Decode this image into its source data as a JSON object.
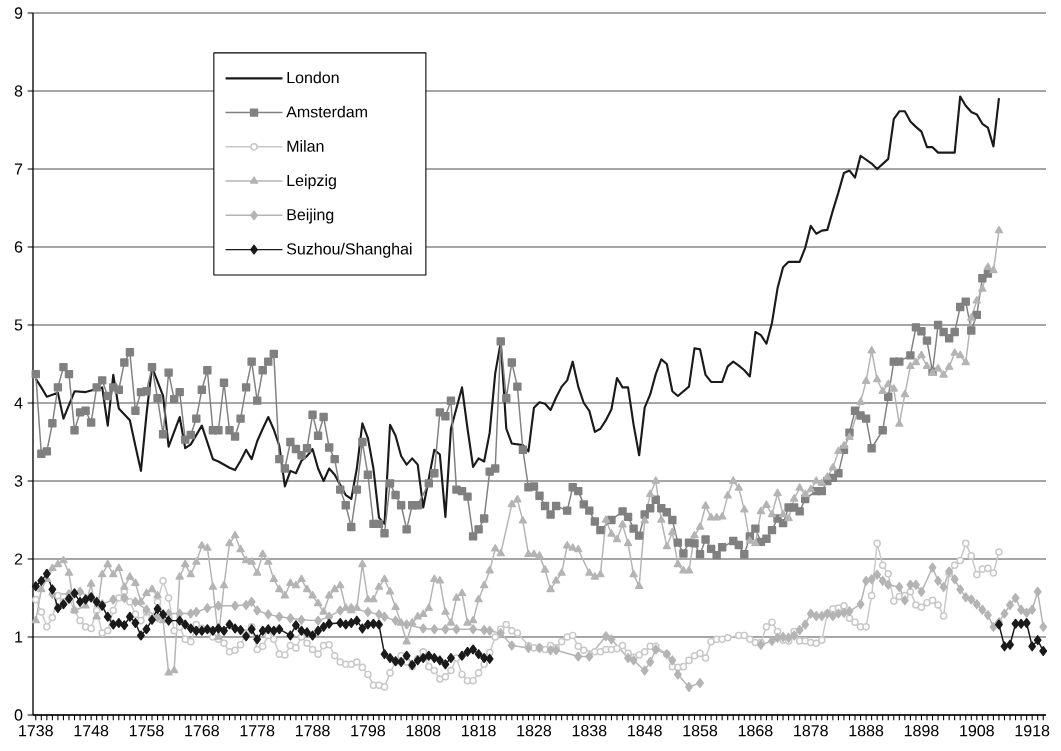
{
  "chart_data": {
    "type": "line",
    "line_style": "solid",
    "grid": "y",
    "legend": "top left",
    "xlim": [
      1737.5,
      1920.5
    ],
    "ylim": [
      0,
      9
    ],
    "yticks": [
      0,
      1,
      2,
      3,
      4,
      5,
      6,
      7,
      8,
      9
    ],
    "xticks": [
      1738,
      {
        "value": 1739,
        "label": null
      },
      {
        "value": 1740,
        "label": null
      },
      {
        "value": 1741,
        "label": null
      },
      {
        "value": 1742,
        "label": null
      },
      {
        "value": 1743,
        "label": null
      },
      {
        "value": 1744,
        "label": null
      },
      {
        "value": 1745,
        "label": null
      },
      {
        "value": 1746,
        "label": null
      },
      {
        "value": 1747,
        "label": null
      },
      1748,
      {
        "value": 1749,
        "label": null
      },
      {
        "value": 1750,
        "label": null
      },
      {
        "value": 1751,
        "label": null
      },
      {
        "value": 1752,
        "label": null
      },
      {
        "value": 1753,
        "label": null
      },
      {
        "value": 1754,
        "label": null
      },
      {
        "value": 1755,
        "label": null
      },
      {
        "value": 1756,
        "label": null
      },
      {
        "value": 1757,
        "label": null
      },
      1758,
      {
        "value": 1759,
        "label": null
      },
      {
        "value": 1760,
        "label": null
      },
      {
        "value": 1761,
        "label": null
      },
      {
        "value": 1762,
        "label": null
      },
      {
        "value": 1763,
        "label": null
      },
      {
        "value": 1764,
        "label": null
      },
      {
        "value": 1765,
        "label": null
      },
      {
        "value": 1766,
        "label": null
      },
      {
        "value": 1767,
        "label": null
      },
      1768,
      {
        "value": 1769,
        "label": null
      },
      {
        "value": 1770,
        "label": null
      },
      {
        "value": 1771,
        "label": null
      },
      {
        "value": 1772,
        "label": null
      },
      {
        "value": 1773,
        "label": null
      },
      {
        "value": 1774,
        "label": null
      },
      {
        "value": 1775,
        "label": null
      },
      {
        "value": 1776,
        "label": null
      },
      {
        "value": 1777,
        "label": null
      },
      1778,
      {
        "value": 1779,
        "label": null
      },
      {
        "value": 1780,
        "label": null
      },
      {
        "value": 1781,
        "label": null
      },
      {
        "value": 1782,
        "label": null
      },
      {
        "value": 1783,
        "label": null
      },
      {
        "value": 1784,
        "label": null
      },
      {
        "value": 1785,
        "label": null
      },
      {
        "value": 1786,
        "label": null
      },
      {
        "value": 1787,
        "label": null
      },
      1788,
      {
        "value": 1789,
        "label": null
      },
      {
        "value": 1790,
        "label": null
      },
      {
        "value": 1791,
        "label": null
      },
      {
        "value": 1792,
        "label": null
      },
      {
        "value": 1793,
        "label": null
      },
      {
        "value": 1794,
        "label": null
      },
      {
        "value": 1795,
        "label": null
      },
      {
        "value": 1796,
        "label": null
      },
      {
        "value": 1797,
        "label": null
      },
      1798,
      {
        "value": 1799,
        "label": null
      },
      {
        "value": 1800,
        "label": null
      },
      {
        "value": 1801,
        "label": null
      },
      {
        "value": 1802,
        "label": null
      },
      {
        "value": 1803,
        "label": null
      },
      {
        "value": 1804,
        "label": null
      },
      {
        "value": 1805,
        "label": null
      },
      {
        "value": 1806,
        "label": null
      },
      {
        "value": 1807,
        "label": null
      },
      1808,
      {
        "value": 1809,
        "label": null
      },
      {
        "value": 1810,
        "label": null
      },
      {
        "value": 1811,
        "label": null
      },
      {
        "value": 1812,
        "label": null
      },
      {
        "value": 1813,
        "label": null
      },
      {
        "value": 1814,
        "label": null
      },
      {
        "value": 1815,
        "label": null
      },
      {
        "value": 1816,
        "label": null
      },
      {
        "value": 1817,
        "label": null
      },
      1818,
      {
        "value": 1819,
        "label": null
      },
      {
        "value": 1820,
        "label": null
      },
      {
        "value": 1821,
        "label": null
      },
      {
        "value": 1822,
        "label": null
      },
      {
        "value": 1823,
        "label": null
      },
      {
        "value": 1824,
        "label": null
      },
      {
        "value": 1825,
        "label": null
      },
      {
        "value": 1826,
        "label": null
      },
      {
        "value": 1827,
        "label": null
      },
      1828,
      {
        "value": 1829,
        "label": null
      },
      {
        "value": 1830,
        "label": null
      },
      {
        "value": 1831,
        "label": null
      },
      {
        "value": 1832,
        "label": null
      },
      {
        "value": 1833,
        "label": null
      },
      {
        "value": 1834,
        "label": null
      },
      {
        "value": 1835,
        "label": null
      },
      {
        "value": 1836,
        "label": null
      },
      {
        "value": 1837,
        "label": null
      },
      1838,
      {
        "value": 1839,
        "label": null
      },
      {
        "value": 1840,
        "label": null
      },
      {
        "value": 1841,
        "label": null
      },
      {
        "value": 1842,
        "label": null
      },
      {
        "value": 1843,
        "label": null
      },
      {
        "value": 1844,
        "label": null
      },
      {
        "value": 1845,
        "label": null
      },
      {
        "value": 1846,
        "label": null
      },
      {
        "value": 1847,
        "label": null
      },
      1848,
      {
        "value": 1849,
        "label": null
      },
      {
        "value": 1850,
        "label": null
      },
      {
        "value": 1851,
        "label": null
      },
      {
        "value": 1852,
        "label": null
      },
      {
        "value": 1853,
        "label": null
      },
      {
        "value": 1854,
        "label": null
      },
      {
        "value": 1855,
        "label": null
      },
      {
        "value": 1856,
        "label": null
      },
      {
        "value": 1857,
        "label": null
      },
      1858,
      {
        "value": 1859,
        "label": null
      },
      {
        "value": 1860,
        "label": null
      },
      {
        "value": 1861,
        "label": null
      },
      {
        "value": 1862,
        "label": null
      },
      {
        "value": 1863,
        "label": null
      },
      {
        "value": 1864,
        "label": null
      },
      {
        "value": 1865,
        "label": null
      },
      {
        "value": 1866,
        "label": null
      },
      {
        "value": 1867,
        "label": null
      },
      1868,
      {
        "value": 1869,
        "label": null
      },
      {
        "value": 1870,
        "label": null
      },
      {
        "value": 1871,
        "label": null
      },
      {
        "value": 1872,
        "label": null
      },
      {
        "value": 1873,
        "label": null
      },
      {
        "value": 1874,
        "label": null
      },
      {
        "value": 1875,
        "label": null
      },
      {
        "value": 1876,
        "label": null
      },
      {
        "value": 1877,
        "label": null
      },
      1878,
      {
        "value": 1879,
        "label": null
      },
      {
        "value": 1880,
        "label": null
      },
      {
        "value": 1881,
        "label": null
      },
      {
        "value": 1882,
        "label": null
      },
      {
        "value": 1883,
        "label": null
      },
      {
        "value": 1884,
        "label": null
      },
      {
        "value": 1885,
        "label": null
      },
      {
        "value": 1886,
        "label": null
      },
      {
        "value": 1887,
        "label": null
      },
      1888,
      {
        "value": 1889,
        "label": null
      },
      {
        "value": 1890,
        "label": null
      },
      {
        "value": 1891,
        "label": null
      },
      {
        "value": 1892,
        "label": null
      },
      {
        "value": 1893,
        "label": null
      },
      {
        "value": 1894,
        "label": null
      },
      {
        "value": 1895,
        "label": null
      },
      {
        "value": 1896,
        "label": null
      },
      {
        "value": 1897,
        "label": null
      },
      1898,
      {
        "value": 1899,
        "label": null
      },
      {
        "value": 1900,
        "label": null
      },
      {
        "value": 1901,
        "label": null
      },
      {
        "value": 1902,
        "label": null
      },
      {
        "value": 1903,
        "label": null
      },
      {
        "value": 1904,
        "label": null
      },
      {
        "value": 1905,
        "label": null
      },
      {
        "value": 1906,
        "label": null
      },
      {
        "value": 1907,
        "label": null
      },
      1908,
      {
        "value": 1909,
        "label": null
      },
      {
        "value": 1910,
        "label": null
      },
      {
        "value": 1911,
        "label": null
      },
      {
        "value": 1912,
        "label": null
      },
      {
        "value": 1913,
        "label": null
      },
      {
        "value": 1914,
        "label": null
      },
      {
        "value": 1915,
        "label": null
      },
      {
        "value": 1916,
        "label": null
      },
      {
        "value": 1917,
        "label": null
      },
      1918,
      {
        "value": 1919,
        "label": null
      },
      {
        "value": 1920,
        "label": null
      }
    ],
    "series": [
      {
        "name": "London",
        "color": "#1a1a1a",
        "marker": "none",
        "x": [
          1738,
          1739,
          1740,
          1742,
          1743,
          1745,
          1747,
          1750,
          1751,
          1752,
          1753,
          1755,
          1756,
          1757,
          1758,
          1759,
          1761,
          1762,
          1764,
          1765,
          1766,
          1768,
          1770,
          1771,
          1772,
          1773,
          1774,
          1775,
          1776,
          1777,
          1778,
          1779,
          1780,
          1781,
          1782,
          1783,
          1784,
          1785,
          1786,
          1787,
          1788,
          1789,
          1790,
          1791,
          1792,
          1794,
          1795,
          1796,
          1797,
          1798,
          1799,
          1800,
          1801,
          1802,
          1803,
          1804,
          1805,
          1806,
          1807,
          1808,
          1809,
          1810,
          1811,
          1812,
          1813,
          1815,
          1816,
          1817,
          1818,
          1819,
          1820,
          1821,
          1822,
          1823,
          1824,
          1826,
          1827,
          1828,
          1829,
          1830,
          1831,
          1832,
          1833,
          1834,
          1835,
          1836,
          1837,
          1838,
          1839,
          1840,
          1841,
          1842,
          1843,
          1844,
          1845,
          1846,
          1847,
          1848,
          1849,
          1850,
          1851,
          1852,
          1853,
          1854,
          1856,
          1857,
          1858,
          1859,
          1860,
          1862,
          1863,
          1864,
          1865,
          1866,
          1867,
          1868,
          1869,
          1870,
          1871,
          1872,
          1873,
          1874,
          1875,
          1876,
          1877,
          1878,
          1879,
          1880,
          1881,
          1882,
          1883,
          1884,
          1885,
          1886,
          1887,
          1888,
          1889,
          1890,
          1892,
          1893,
          1894,
          1895,
          1896,
          1897,
          1898,
          1899,
          1900,
          1901,
          1902,
          1903,
          1904,
          1905,
          1906,
          1907,
          1908,
          1909,
          1910,
          1911,
          1912
        ],
        "values": [
          4.31,
          4.2,
          4.08,
          4.13,
          3.8,
          4.15,
          4.14,
          4.2,
          3.71,
          4.36,
          3.93,
          3.78,
          3.45,
          3.13,
          3.85,
          4.46,
          4.09,
          3.44,
          3.82,
          3.42,
          3.47,
          3.71,
          3.28,
          3.25,
          3.21,
          3.17,
          3.14,
          3.26,
          3.4,
          3.28,
          3.51,
          3.67,
          3.82,
          3.66,
          3.45,
          2.93,
          3.13,
          3.1,
          3.26,
          3.32,
          3.41,
          3.16,
          3.0,
          3.16,
          3.08,
          2.82,
          2.77,
          3.16,
          3.74,
          3.55,
          3.16,
          2.53,
          2.45,
          3.72,
          3.58,
          3.32,
          3.21,
          3.29,
          3.21,
          2.66,
          3.03,
          3.4,
          3.34,
          2.54,
          3.67,
          4.2,
          3.67,
          3.18,
          3.29,
          3.25,
          3.62,
          4.38,
          4.78,
          3.67,
          3.48,
          3.46,
          3.38,
          3.94,
          4.01,
          3.99,
          3.91,
          4.07,
          4.21,
          4.29,
          4.53,
          4.21,
          4.0,
          3.9,
          3.63,
          3.67,
          3.78,
          3.92,
          4.32,
          4.2,
          4.2,
          3.72,
          3.33,
          3.94,
          4.11,
          4.37,
          4.56,
          4.5,
          4.15,
          4.09,
          4.21,
          4.7,
          4.69,
          4.36,
          4.27,
          4.27,
          4.47,
          4.53,
          4.48,
          4.42,
          4.34,
          4.91,
          4.87,
          4.76,
          5.03,
          5.47,
          5.74,
          5.81,
          5.81,
          5.81,
          5.99,
          6.27,
          6.17,
          6.21,
          6.22,
          6.47,
          6.7,
          6.95,
          6.98,
          6.89,
          7.17,
          7.12,
          7.07,
          7.0,
          7.13,
          7.64,
          7.74,
          7.74,
          7.61,
          7.54,
          7.48,
          7.28,
          7.28,
          7.21,
          7.21,
          7.21,
          7.21,
          7.93,
          7.81,
          7.73,
          7.7,
          7.58,
          7.53,
          7.29,
          7.91
        ]
      },
      {
        "name": "Amsterdam",
        "color": "#808080",
        "marker": "square",
        "x": [
          1738,
          1739,
          1740,
          1741,
          1742,
          1743,
          1744,
          1745,
          1746,
          1747,
          1748,
          1749,
          1750,
          1751,
          1752,
          1753,
          1754,
          1755,
          1756,
          1757,
          1758,
          1759,
          1760,
          1761,
          1762,
          1763,
          1764,
          1765,
          1766,
          1767,
          1768,
          1769,
          1770,
          1771,
          1772,
          1773,
          1774,
          1775,
          1776,
          1777,
          1778,
          1779,
          1780,
          1781,
          1782,
          1783,
          1784,
          1785,
          1786,
          1787,
          1788,
          1789,
          1790,
          1791,
          1792,
          1793,
          1794,
          1795,
          1796,
          1797,
          1798,
          1799,
          1800,
          1801,
          1802,
          1803,
          1804,
          1805,
          1806,
          1807,
          1809,
          1810,
          1811,
          1812,
          1813,
          1814,
          1815,
          1816,
          1817,
          1818,
          1819,
          1820,
          1821,
          1822,
          1823,
          1824,
          1825,
          1826,
          1827,
          1828,
          1829,
          1830,
          1831,
          1832,
          1834,
          1835,
          1836,
          1837,
          1838,
          1839,
          1840,
          1842,
          1844,
          1845,
          1846,
          1847,
          1848,
          1849,
          1850,
          1851,
          1852,
          1853,
          1854,
          1855,
          1856,
          1857,
          1858,
          1859,
          1860,
          1861,
          1862,
          1864,
          1865,
          1866,
          1867,
          1868,
          1869,
          1870,
          1871,
          1872,
          1873,
          1874,
          1875,
          1876,
          1877,
          1879,
          1880,
          1881,
          1882,
          1883,
          1884,
          1885,
          1886,
          1887,
          1888,
          1889,
          1891,
          1892,
          1893,
          1894,
          1896,
          1897,
          1898,
          1899,
          1900,
          1901,
          1902,
          1903,
          1904,
          1905,
          1906,
          1907,
          1908,
          1909,
          1910
        ],
        "values": [
          4.37,
          3.35,
          3.38,
          3.74,
          4.2,
          4.46,
          4.37,
          3.65,
          3.88,
          3.9,
          3.75,
          4.2,
          4.29,
          4.09,
          4.2,
          4.17,
          4.52,
          4.65,
          3.9,
          4.14,
          4.15,
          4.46,
          4.06,
          3.6,
          4.39,
          4.05,
          4.14,
          3.53,
          3.59,
          3.8,
          4.17,
          4.42,
          3.65,
          3.65,
          4.26,
          3.65,
          3.57,
          3.8,
          4.2,
          4.53,
          4.03,
          4.42,
          4.53,
          4.63,
          3.28,
          3.16,
          3.5,
          3.41,
          3.33,
          3.42,
          3.85,
          3.58,
          3.82,
          3.43,
          3.28,
          2.89,
          2.69,
          2.41,
          2.89,
          3.5,
          3.08,
          2.45,
          2.45,
          2.33,
          2.97,
          2.82,
          2.69,
          2.38,
          2.69,
          2.69,
          2.97,
          3.1,
          3.88,
          3.83,
          4.03,
          2.89,
          2.87,
          2.8,
          2.29,
          2.38,
          2.52,
          3.12,
          3.16,
          4.79,
          4.06,
          4.52,
          4.21,
          3.4,
          2.92,
          2.93,
          2.81,
          2.68,
          2.57,
          2.68,
          2.62,
          2.92,
          2.87,
          2.7,
          2.62,
          2.48,
          2.37,
          2.5,
          2.61,
          2.54,
          2.39,
          2.3,
          2.57,
          2.65,
          2.76,
          2.65,
          2.6,
          2.5,
          2.21,
          2.07,
          2.21,
          2.2,
          2.06,
          2.25,
          2.13,
          2.05,
          2.15,
          2.23,
          2.18,
          2.06,
          2.29,
          2.39,
          2.22,
          2.26,
          2.37,
          2.52,
          2.46,
          2.66,
          2.66,
          2.61,
          2.77,
          2.87,
          2.87,
          3.0,
          3.04,
          3.1,
          3.4,
          3.62,
          3.9,
          3.84,
          3.8,
          3.42,
          3.65,
          4.08,
          4.53,
          4.53,
          4.61,
          4.97,
          4.92,
          4.8,
          4.4,
          5.0,
          4.91,
          4.83,
          4.91,
          5.23,
          5.3,
          4.93,
          5.13,
          5.6,
          5.66
        ]
      },
      {
        "name": "Milan",
        "color": "#c8c8c8",
        "marker": "circle",
        "x": [
          1738,
          1739,
          1740,
          1741,
          1742,
          1743,
          1744,
          1745,
          1746,
          1747,
          1748,
          1749,
          1750,
          1751,
          1752,
          1753,
          1754,
          1755,
          1756,
          1757,
          1758,
          1759,
          1760,
          1761,
          1762,
          1763,
          1764,
          1765,
          1766,
          1767,
          1768,
          1769,
          1770,
          1771,
          1772,
          1773,
          1774,
          1775,
          1776,
          1777,
          1778,
          1779,
          1780,
          1781,
          1782,
          1783,
          1784,
          1785,
          1786,
          1787,
          1788,
          1789,
          1790,
          1791,
          1792,
          1793,
          1794,
          1795,
          1796,
          1797,
          1798,
          1799,
          1800,
          1801,
          1802,
          1803,
          1804,
          1805,
          1806,
          1807,
          1808,
          1809,
          1810,
          1811,
          1812,
          1813,
          1814,
          1815,
          1816,
          1817,
          1818,
          1819,
          1820,
          1821,
          1822,
          1823,
          1824,
          1825,
          1827,
          1828,
          1829,
          1830,
          1831,
          1832,
          1833,
          1834,
          1835,
          1836,
          1837,
          1839,
          1840,
          1841,
          1842,
          1843,
          1844,
          1845,
          1846,
          1847,
          1848,
          1849,
          1850,
          1852,
          1853,
          1854,
          1855,
          1856,
          1857,
          1858,
          1859,
          1860,
          1861,
          1862,
          1863,
          1865,
          1866,
          1867,
          1868,
          1869,
          1870,
          1871,
          1872,
          1873,
          1874,
          1875,
          1876,
          1877,
          1878,
          1879,
          1880,
          1881,
          1882,
          1883,
          1884,
          1885,
          1886,
          1887,
          1888,
          1889,
          1890,
          1891,
          1892,
          1893,
          1894,
          1895,
          1896,
          1897,
          1898,
          1899,
          1900,
          1901,
          1902,
          1903,
          1904,
          1905,
          1906,
          1907,
          1908,
          1909,
          1910,
          1911,
          1912
        ],
        "values": [
          1.48,
          1.32,
          1.13,
          1.25,
          1.53,
          1.45,
          1.5,
          1.34,
          1.21,
          1.13,
          1.11,
          1.34,
          1.05,
          1.08,
          1.34,
          1.5,
          1.58,
          1.45,
          1.29,
          1.21,
          1.32,
          1.24,
          1.45,
          1.72,
          1.5,
          1.08,
          1.13,
          0.97,
          0.94,
          1.16,
          1.11,
          1.1,
          1.0,
          0.97,
          0.92,
          0.81,
          0.83,
          0.9,
          1.05,
          1.13,
          0.84,
          0.88,
          1.02,
          0.97,
          0.78,
          0.77,
          0.89,
          0.86,
          1.0,
          0.92,
          0.84,
          0.78,
          0.89,
          0.9,
          0.76,
          0.68,
          0.65,
          0.65,
          0.68,
          0.61,
          0.52,
          0.38,
          0.38,
          0.36,
          0.54,
          0.68,
          0.76,
          0.68,
          0.62,
          0.72,
          0.81,
          0.62,
          0.57,
          0.46,
          0.49,
          0.57,
          0.73,
          0.52,
          0.44,
          0.44,
          0.54,
          0.65,
          0.8,
          1.0,
          1.1,
          1.16,
          1.08,
          1.05,
          0.89,
          0.86,
          0.86,
          0.84,
          0.89,
          0.86,
          0.94,
          1.0,
          1.02,
          0.88,
          0.83,
          0.81,
          0.81,
          0.84,
          0.84,
          0.85,
          0.89,
          0.79,
          0.74,
          0.77,
          0.81,
          0.88,
          0.88,
          0.78,
          0.62,
          0.61,
          0.62,
          0.7,
          0.76,
          0.79,
          0.73,
          0.94,
          0.97,
          0.97,
          0.99,
          1.02,
          1.02,
          0.97,
          0.93,
          0.93,
          1.13,
          1.19,
          1.07,
          0.96,
          0.95,
          1.07,
          0.95,
          0.95,
          0.93,
          0.92,
          0.96,
          1.3,
          1.36,
          1.37,
          1.4,
          1.24,
          1.19,
          1.13,
          1.13,
          1.53,
          2.2,
          1.92,
          1.81,
          1.46,
          1.52,
          1.53,
          1.58,
          1.41,
          1.38,
          1.44,
          1.47,
          1.41,
          1.27,
          1.81,
          1.92,
          1.98,
          2.2,
          2.04,
          1.8,
          1.87,
          1.88,
          1.82,
          2.09
        ]
      },
      {
        "name": "Leipzig",
        "color": "#b4b4b4",
        "marker": "triangle",
        "x": [
          1738,
          1739,
          1740,
          1741,
          1742,
          1743,
          1744,
          1745,
          1747,
          1748,
          1749,
          1750,
          1751,
          1752,
          1753,
          1754,
          1755,
          1756,
          1757,
          1758,
          1759,
          1760,
          1761,
          1762,
          1763,
          1764,
          1765,
          1766,
          1767,
          1768,
          1769,
          1770,
          1771,
          1772,
          1773,
          1774,
          1775,
          1776,
          1777,
          1778,
          1779,
          1780,
          1781,
          1782,
          1783,
          1784,
          1785,
          1786,
          1787,
          1788,
          1789,
          1790,
          1791,
          1792,
          1793,
          1794,
          1795,
          1796,
          1797,
          1798,
          1799,
          1800,
          1801,
          1802,
          1803,
          1804,
          1805,
          1806,
          1807,
          1808,
          1809,
          1810,
          1811,
          1812,
          1813,
          1814,
          1815,
          1816,
          1817,
          1818,
          1819,
          1820,
          1821,
          1822,
          1824,
          1825,
          1826,
          1827,
          1828,
          1829,
          1830,
          1831,
          1832,
          1833,
          1834,
          1835,
          1836,
          1838,
          1839,
          1840,
          1841,
          1842,
          1843,
          1844,
          1845,
          1846,
          1847,
          1848,
          1849,
          1850,
          1851,
          1852,
          1853,
          1854,
          1855,
          1856,
          1857,
          1858,
          1859,
          1860,
          1861,
          1862,
          1863,
          1864,
          1865,
          1866,
          1867,
          1868,
          1869,
          1870,
          1871,
          1872,
          1873,
          1874,
          1875,
          1876,
          1877,
          1878,
          1879,
          1880,
          1881,
          1882,
          1883,
          1884,
          1885,
          1887,
          1888,
          1889,
          1890,
          1891,
          1892,
          1893,
          1894,
          1895,
          1896,
          1897,
          1898,
          1899,
          1900,
          1901,
          1902,
          1903,
          1904,
          1905,
          1906,
          1907,
          1908,
          1909,
          1910,
          1911,
          1912
        ],
        "values": [
          1.21,
          1.61,
          1.74,
          1.88,
          1.93,
          1.98,
          1.82,
          1.34,
          1.4,
          1.68,
          1.26,
          1.8,
          1.93,
          1.8,
          1.88,
          1.64,
          1.77,
          1.69,
          1.45,
          1.56,
          1.61,
          1.53,
          1.21,
          0.54,
          0.57,
          1.77,
          1.93,
          1.8,
          1.96,
          2.17,
          2.14,
          1.64,
          1.0,
          1.66,
          2.2,
          2.3,
          2.12,
          1.98,
          1.96,
          1.82,
          2.06,
          1.96,
          1.74,
          1.61,
          1.53,
          1.69,
          1.66,
          1.74,
          1.61,
          1.53,
          1.43,
          1.32,
          1.53,
          1.61,
          1.66,
          1.37,
          1.34,
          1.37,
          1.93,
          1.48,
          1.48,
          1.64,
          1.74,
          1.58,
          1.38,
          1.18,
          0.94,
          1.18,
          1.26,
          1.29,
          1.37,
          1.74,
          1.72,
          1.32,
          1.18,
          1.5,
          1.56,
          1.18,
          1.21,
          1.48,
          1.66,
          1.85,
          2.13,
          2.07,
          2.7,
          2.76,
          2.49,
          2.06,
          2.06,
          2.04,
          1.86,
          1.61,
          1.72,
          1.82,
          2.17,
          2.14,
          2.12,
          1.82,
          1.77,
          1.8,
          2.5,
          2.32,
          2.25,
          2.44,
          2.2,
          1.8,
          1.65,
          2.49,
          2.83,
          3.0,
          2.5,
          2.16,
          2.34,
          1.93,
          1.85,
          1.85,
          2.3,
          2.41,
          2.68,
          2.53,
          2.53,
          2.54,
          2.81,
          3.0,
          2.91,
          2.63,
          2.23,
          2.2,
          2.61,
          2.69,
          2.57,
          2.84,
          2.57,
          2.52,
          2.77,
          2.91,
          2.83,
          2.89,
          3.0,
          2.97,
          3.05,
          3.17,
          3.38,
          3.45,
          3.56,
          4.01,
          4.28,
          4.67,
          4.3,
          4.15,
          4.24,
          4.18,
          3.73,
          4.11,
          4.47,
          4.52,
          4.61,
          4.47,
          4.38,
          4.44,
          4.36,
          4.46,
          4.64,
          4.61,
          4.52,
          5.09,
          5.31,
          5.46,
          5.74,
          5.7,
          6.21
        ]
      },
      {
        "name": "Beijing",
        "color": "#b4b4b4",
        "marker": "diamond",
        "x": [
          1741,
          1744,
          1746,
          1748,
          1750,
          1752,
          1754,
          1756,
          1758,
          1760,
          1762,
          1764,
          1766,
          1767,
          1769,
          1771,
          1774,
          1776,
          1777,
          1778,
          1780,
          1782,
          1784,
          1786,
          1789,
          1791,
          1793,
          1795,
          1798,
          1800,
          1801,
          1803,
          1805,
          1808,
          1810,
          1812,
          1814,
          1817,
          1819,
          1820,
          1822,
          1824,
          1827,
          1829,
          1831,
          1832,
          1836,
          1838,
          1841,
          1842,
          1845,
          1846,
          1848,
          1849,
          1850,
          1852,
          1853,
          1854,
          1856,
          1858,
          1864,
          1869,
          1871,
          1872,
          1873,
          1874,
          1875,
          1876,
          1877,
          1878,
          1879,
          1880,
          1881,
          1882,
          1883,
          1884,
          1885,
          1887,
          1888,
          1889,
          1890,
          1891,
          1892,
          1894,
          1895,
          1896,
          1897,
          1898,
          1900,
          1901,
          1902,
          1903,
          1904,
          1905,
          1906,
          1907,
          1908,
          1909,
          1910,
          1911,
          1912,
          1913,
          1914,
          1915,
          1916,
          1917,
          1918,
          1919,
          1920
        ],
        "values": [
          1.55,
          1.55,
          1.58,
          1.5,
          1.42,
          1.48,
          1.5,
          1.45,
          1.35,
          1.25,
          1.3,
          1.3,
          1.3,
          1.32,
          1.37,
          1.4,
          1.4,
          1.41,
          1.45,
          1.34,
          1.29,
          1.26,
          1.24,
          1.22,
          1.21,
          1.26,
          1.34,
          1.37,
          1.32,
          1.29,
          1.26,
          1.21,
          1.16,
          1.11,
          1.1,
          1.1,
          1.1,
          1.1,
          1.09,
          1.08,
          1.05,
          0.89,
          0.86,
          0.86,
          0.83,
          0.83,
          0.75,
          0.75,
          1.01,
          0.97,
          0.73,
          0.7,
          0.57,
          0.68,
          0.84,
          0.78,
          0.7,
          0.52,
          0.36,
          0.41,
          null,
          0.9,
          0.95,
          0.99,
          1.0,
          0.99,
          1.02,
          1.09,
          1.16,
          1.3,
          1.27,
          1.27,
          1.3,
          1.27,
          1.3,
          1.31,
          1.33,
          1.42,
          1.72,
          1.74,
          1.8,
          1.72,
          1.67,
          1.64,
          1.47,
          1.67,
          1.67,
          1.58,
          1.89,
          1.72,
          1.64,
          1.84,
          1.74,
          1.61,
          1.51,
          1.48,
          1.42,
          1.35,
          1.28,
          1.13,
          1.19,
          1.3,
          1.41,
          1.5,
          1.35,
          1.31,
          1.35,
          1.58,
          1.13
        ]
      },
      {
        "name": "Suzhou/Shanghai",
        "color": "#1a1a1a",
        "marker": "diamond",
        "x": [
          1738,
          1739,
          1740,
          1741,
          1742,
          1743,
          1744,
          1745,
          1746,
          1747,
          1748,
          1749,
          1750,
          1751,
          1752,
          1753,
          1754,
          1755,
          1756,
          1757,
          1758,
          1759,
          1760,
          1761,
          1762,
          1764,
          1765,
          1766,
          1767,
          1768,
          1769,
          1770,
          1771,
          1772,
          1773,
          1774,
          1775,
          1776,
          1777,
          1778,
          1779,
          1780,
          1781,
          1782,
          1784,
          1785,
          1786,
          1787,
          1788,
          1789,
          1790,
          1791,
          1793,
          1794,
          1795,
          1796,
          1797,
          1798,
          1799,
          1800,
          1801,
          1802,
          1803,
          1804,
          1805,
          1806,
          1807,
          1808,
          1809,
          1810,
          1811,
          1812,
          1813,
          1815,
          1816,
          1817,
          1818,
          1819,
          1820,
          1866,
          1912,
          1913,
          1914,
          1915,
          1916,
          1917,
          1918,
          1919,
          1920
        ],
        "values": [
          1.65,
          1.72,
          1.81,
          1.61,
          1.37,
          1.42,
          1.49,
          1.56,
          1.45,
          1.48,
          1.51,
          1.45,
          1.4,
          1.26,
          1.16,
          1.18,
          1.15,
          1.26,
          1.18,
          1.02,
          1.1,
          1.22,
          1.36,
          1.29,
          1.21,
          1.21,
          1.16,
          1.11,
          1.08,
          1.08,
          1.1,
          1.08,
          1.11,
          1.08,
          1.16,
          1.11,
          1.09,
          1.01,
          1.1,
          0.97,
          1.08,
          1.1,
          1.08,
          1.1,
          1.02,
          1.15,
          1.08,
          1.06,
          1.02,
          1.08,
          1.13,
          1.17,
          1.18,
          1.16,
          1.18,
          1.21,
          1.11,
          1.16,
          1.17,
          1.16,
          0.78,
          0.73,
          0.69,
          0.68,
          0.76,
          0.64,
          0.7,
          0.73,
          0.76,
          0.73,
          0.7,
          0.65,
          0.73,
          0.76,
          0.81,
          0.84,
          0.78,
          0.73,
          0.72,
          null,
          1.16,
          0.88,
          0.9,
          1.17,
          1.17,
          1.18,
          0.88,
          0.96,
          0.82
        ]
      }
    ]
  }
}
